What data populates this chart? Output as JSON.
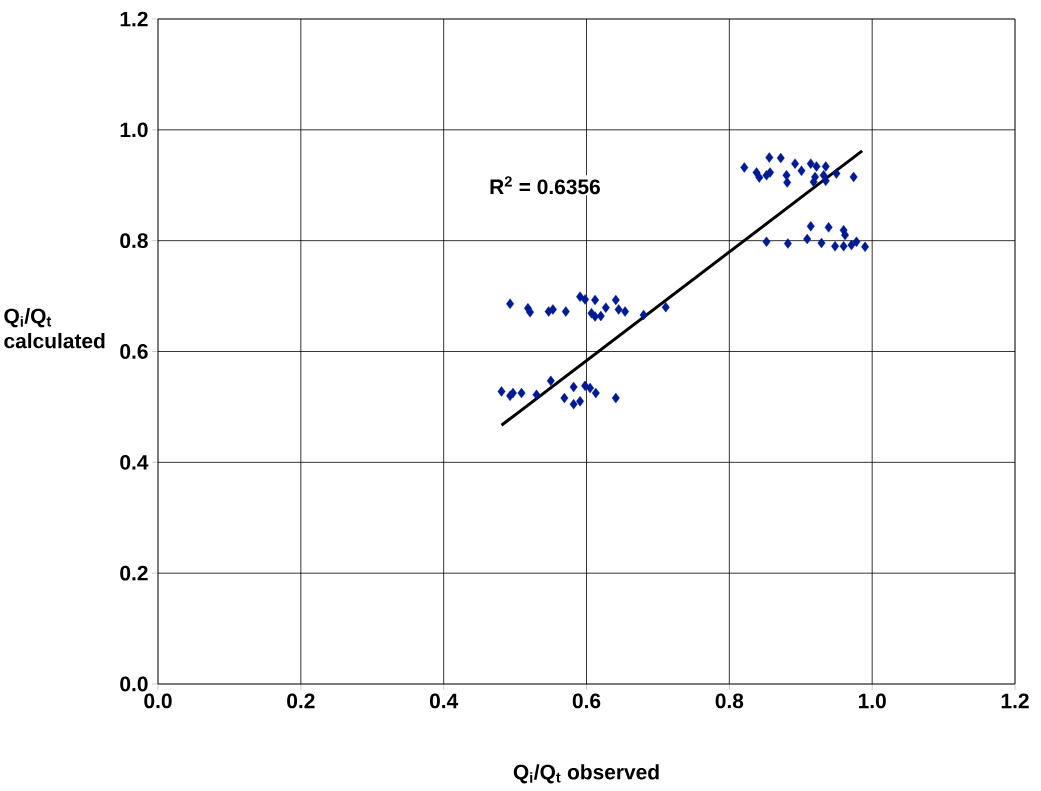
{
  "chart_data": {
    "type": "scatter",
    "xlabel": "Q$_{i}$/Q$_{t}$ observed",
    "ylabel": "Q$_{i}$/Q$_{t}$ calculated",
    "annotations": [
      "R$^{2}$ = 0.6356"
    ],
    "xlim": [
      0,
      1.2
    ],
    "ylim": [
      0,
      1.2
    ],
    "xticks": [
      {
        "value": 0,
        "label": "0.0"
      },
      {
        "value": 0.2,
        "label": "0.2"
      },
      {
        "value": 0.4,
        "label": "0.4"
      },
      {
        "value": 0.6,
        "label": "0.6"
      },
      {
        "value": 0.8,
        "label": "0.8"
      },
      {
        "value": 1.0,
        "label": "1.0"
      },
      {
        "value": 1.2,
        "label": "1.2"
      }
    ],
    "yticks": [
      {
        "value": 0,
        "label": "0.0"
      },
      {
        "value": 0.2,
        "label": "0.2"
      },
      {
        "value": 0.4,
        "label": "0.4"
      },
      {
        "value": 0.6,
        "label": "0.6"
      },
      {
        "value": 0.8,
        "label": "0.8"
      },
      {
        "value": 1.0,
        "label": "1.0"
      },
      {
        "value": 1.2,
        "label": "1.2"
      }
    ],
    "grid": true,
    "series": [
      {
        "marker": "diamond",
        "color": "#001a94",
        "x": [
          0.493,
          0.518,
          0.521,
          0.547,
          0.553,
          0.571,
          0.591,
          0.598,
          0.612,
          0.607,
          0.612,
          0.62,
          0.627,
          0.641,
          0.645,
          0.654,
          0.68,
          0.711,
          0.481,
          0.493,
          0.497,
          0.509,
          0.53,
          0.55,
          0.569,
          0.582,
          0.582,
          0.591,
          0.598,
          0.605,
          0.613,
          0.641,
          0.821,
          0.838,
          0.842,
          0.856,
          0.857,
          0.852,
          0.872,
          0.88,
          0.881,
          0.892,
          0.901,
          0.914,
          0.922,
          0.92,
          0.918,
          0.935,
          0.932,
          0.935,
          0.95,
          0.974,
          0.852,
          0.882,
          0.909,
          0.914,
          0.929,
          0.939,
          0.948,
          0.96,
          0.962,
          0.96,
          0.971,
          0.978,
          0.99
        ],
        "values": [
          0.686,
          0.678,
          0.671,
          0.672,
          0.676,
          0.672,
          0.699,
          0.694,
          0.693,
          0.669,
          0.663,
          0.664,
          0.679,
          0.693,
          0.676,
          0.672,
          0.666,
          0.68,
          0.528,
          0.52,
          0.525,
          0.525,
          0.522,
          0.547,
          0.516,
          0.536,
          0.505,
          0.51,
          0.538,
          0.534,
          0.525,
          0.516,
          0.932,
          0.923,
          0.914,
          0.95,
          0.923,
          0.918,
          0.949,
          0.918,
          0.905,
          0.939,
          0.926,
          0.939,
          0.934,
          0.915,
          0.906,
          0.934,
          0.918,
          0.908,
          0.921,
          0.915,
          0.798,
          0.795,
          0.803,
          0.826,
          0.796,
          0.824,
          0.79,
          0.819,
          0.81,
          0.79,
          0.792,
          0.798,
          0.789
        ]
      },
      {
        "type": "line",
        "color": "#000000",
        "x": [
          0.481,
          0.986
        ],
        "values": [
          0.467,
          0.962
        ]
      }
    ]
  }
}
